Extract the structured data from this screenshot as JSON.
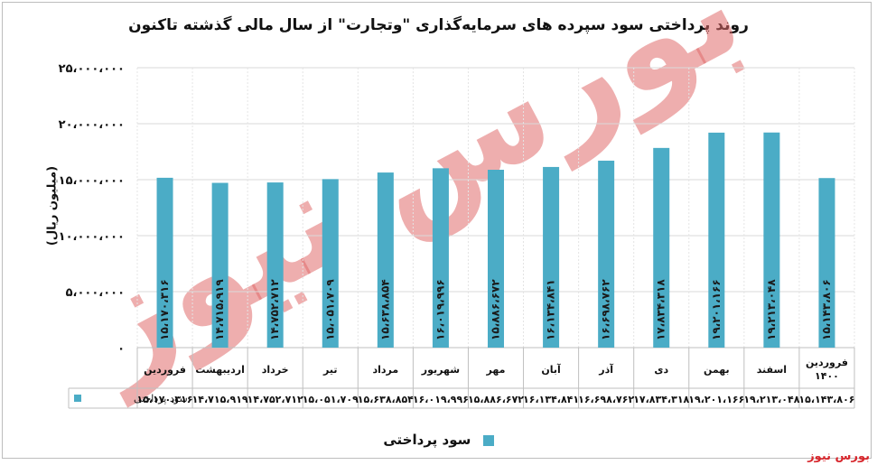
{
  "chart_data": {
    "type": "bar",
    "title": "روند پرداختی سود سپرده های سرمایه‌گذاری \"وتجارت\" از سال مالی گذشته تاکنون",
    "ylabel": "(میلیون ریال)",
    "ylim": [
      0,
      25000000
    ],
    "yticks": [
      0,
      5000000,
      10000000,
      15000000,
      20000000,
      25000000
    ],
    "ytick_labels": [
      "۰",
      "۵،۰۰۰،۰۰۰",
      "۱۰،۰۰۰،۰۰۰",
      "۱۵،۰۰۰،۰۰۰",
      "۲۰،۰۰۰،۰۰۰",
      "۲۵،۰۰۰،۰۰۰"
    ],
    "categories": [
      "فروردین",
      "اردیبهشت",
      "خرداد",
      "تیر",
      "مرداد",
      "شهریور",
      "مهر",
      "آبان",
      "آذر",
      "دی",
      "بهمن",
      "اسفند",
      "فروردین ۱۴۰۰"
    ],
    "series": [
      {
        "name": "سود پرداختی",
        "values": [
          15170316,
          14715919,
          14752712,
          15051709,
          15638854,
          16019996,
          15886672,
          16134841,
          16698762,
          17834318,
          19201166,
          19213048,
          15143806
        ],
        "labels": [
          "۱۵،۱۷۰،۳۱۶",
          "۱۴،۷۱۵،۹۱۹",
          "۱۴،۷۵۲،۷۱۲",
          "۱۵،۰۵۱،۷۰۹",
          "۱۵،۶۳۸،۸۵۴",
          "۱۶،۰۱۹،۹۹۶",
          "۱۵،۸۸۶،۶۷۲",
          "۱۶،۱۳۴،۸۴۱",
          "۱۶،۶۹۸،۷۶۲",
          "۱۷،۸۳۴،۳۱۸",
          "۱۹،۲۰۱،۱۶۶",
          "۱۹،۲۱۳،۰۴۸",
          "۱۵،۱۴۳،۸۰۶"
        ],
        "color": "#4bacc6"
      }
    ],
    "table_series_label": "سود پرداختی",
    "legend": "bottom",
    "grid": true
  },
  "watermark": "بورس نیوز",
  "brand": "بورس نیوز"
}
